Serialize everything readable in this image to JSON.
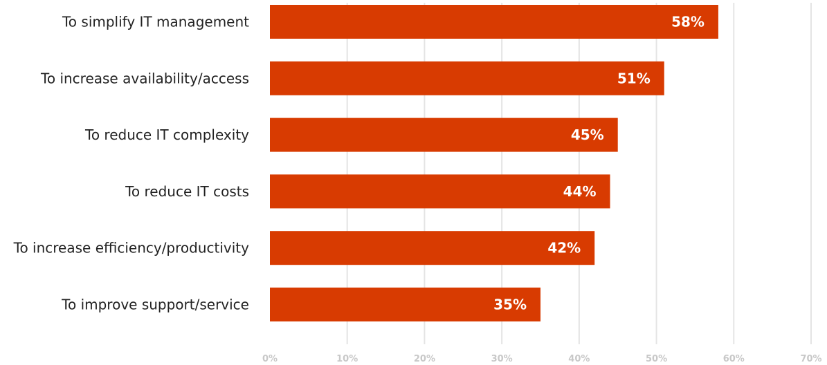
{
  "chart_data": {
    "type": "bar",
    "orientation": "horizontal",
    "categories": [
      "To simplify IT management",
      "To increase availability/access",
      "To reduce IT complexity",
      "To reduce IT costs",
      "To increase efficiency/productivity",
      "To improve support/service"
    ],
    "values": [
      58,
      51,
      45,
      44,
      42,
      35
    ],
    "value_labels": [
      "58%",
      "51%",
      "45%",
      "44%",
      "42%",
      "35%"
    ],
    "title": "",
    "xlabel": "",
    "ylabel": "",
    "xlim": [
      0,
      70
    ],
    "x_ticks": [
      0,
      10,
      20,
      30,
      40,
      50,
      60,
      70
    ],
    "x_tick_labels": [
      "0%",
      "10%",
      "20%",
      "30%",
      "40%",
      "50%",
      "60%",
      "70%"
    ],
    "grid": true,
    "legend": "none"
  },
  "colors": {
    "bar": "#d83b01",
    "gridline": "#e4e4e4",
    "tick_label": "#c8c8c8",
    "category_label": "#222222",
    "bar_label": "#ffffff"
  }
}
